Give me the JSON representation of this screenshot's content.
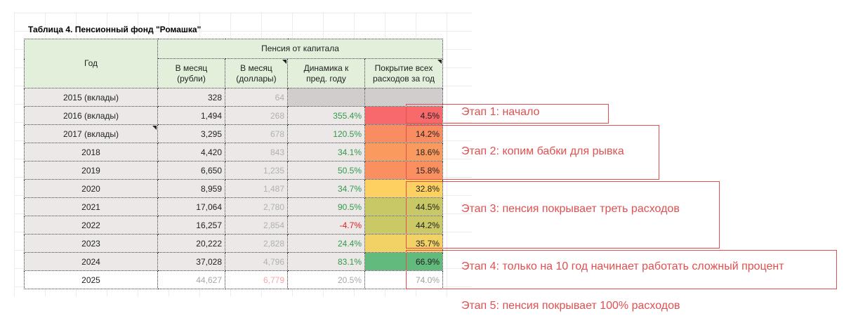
{
  "title": "Таблица 4. Пенсионный фонд \"Ромашка\"",
  "headers": {
    "year": "Год",
    "group": "Пенсия от капитала",
    "rub": "В месяц\n(рубли)",
    "usd": "В месяц\n(доллары)",
    "dyn": "Динамика к\nпред. году",
    "cov": "Покрытие всех\nрасходов за год"
  },
  "rows": [
    {
      "year": "2015 (вклады)",
      "rub": "328",
      "usd": "64",
      "dyn": "",
      "cov": "",
      "cov_color": "#d2cdcd"
    },
    {
      "year": "2016 (вклады)",
      "rub": "1,494",
      "usd": "268",
      "dyn": "355.4%",
      "cov": "4.5%",
      "cov_color": "#f8696b"
    },
    {
      "year": "2017 (вклады)",
      "rub": "3,295",
      "usd": "678",
      "dyn": "120.5%",
      "cov": "14.2%",
      "cov_color": "#fa8c62"
    },
    {
      "year": "2018",
      "rub": "4,420",
      "usd": "843",
      "dyn": "34.1%",
      "cov": "18.6%",
      "cov_color": "#fb9a5f"
    },
    {
      "year": "2019",
      "rub": "6,650",
      "usd": "1,235",
      "dyn": "50.5%",
      "cov": "15.8%",
      "cov_color": "#fa9060"
    },
    {
      "year": "2020",
      "rub": "8,959",
      "usd": "1,487",
      "dyn": "34.7%",
      "cov": "32.8%",
      "cov_color": "#fdd062"
    },
    {
      "year": "2021",
      "rub": "17,064",
      "usd": "2,780",
      "dyn": "90.5%",
      "cov": "44.5%",
      "cov_color": "#c9c866"
    },
    {
      "year": "2022",
      "rub": "16,257",
      "usd": "2,854",
      "dyn": "-4.7%",
      "cov": "44.2%",
      "cov_color": "#cbc866"
    },
    {
      "year": "2023",
      "rub": "20,222",
      "usd": "2,828",
      "dyn": "24.4%",
      "cov": "35.7%",
      "cov_color": "#f2d265"
    },
    {
      "year": "2024",
      "rub": "37,028",
      "usd": "4,796",
      "dyn": "83.1%",
      "cov": "66.9%",
      "cov_color": "#62bb7c"
    },
    {
      "year": "2025",
      "rub": "44,627",
      "usd": "6,779",
      "dyn": "20.5%",
      "cov": "74.0%",
      "cov_color": "#ffffff"
    }
  ],
  "stages": [
    "Этап 1: начало",
    "Этап 2: копим бабки для рывка",
    "Этап 3: пенсия покрывает треть расходов",
    "Этап 4: только на 10 год начинает работать сложный процент",
    "Этап 5: пенсия покрывает 100% расходов"
  ]
}
